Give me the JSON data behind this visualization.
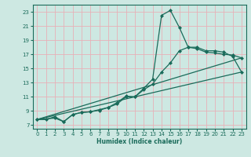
{
  "xlabel": "Humidex (Indice chaleur)",
  "xlim": [
    -0.5,
    23.5
  ],
  "ylim": [
    6.5,
    24.0
  ],
  "xticks": [
    0,
    1,
    2,
    3,
    4,
    5,
    6,
    7,
    8,
    9,
    10,
    11,
    12,
    13,
    14,
    15,
    16,
    17,
    18,
    19,
    20,
    21,
    22,
    23
  ],
  "yticks": [
    7,
    9,
    11,
    13,
    15,
    17,
    19,
    21,
    23
  ],
  "bg_color": "#cde8e2",
  "grid_color": "#e8b0b8",
  "line_color": "#1a6b5a",
  "lines": [
    {
      "x": [
        0,
        2,
        3,
        4,
        5,
        6,
        7,
        8,
        9,
        10,
        11,
        12,
        13,
        14,
        15,
        16,
        17,
        18,
        19,
        20,
        21,
        22,
        23
      ],
      "y": [
        7.8,
        8.0,
        7.5,
        8.5,
        8.8,
        8.9,
        9.1,
        9.5,
        10.0,
        11.0,
        11.0,
        12.2,
        13.5,
        22.5,
        23.2,
        20.8,
        18.0,
        17.8,
        17.3,
        17.2,
        17.0,
        16.9,
        16.5
      ],
      "marker": "D",
      "markersize": 2.0,
      "linewidth": 0.9
    },
    {
      "x": [
        0,
        1,
        2,
        3,
        4,
        5,
        6,
        7,
        8,
        9,
        10,
        11,
        12,
        13,
        14,
        15,
        16,
        17,
        18,
        19,
        20,
        21,
        22,
        23
      ],
      "y": [
        7.8,
        7.8,
        8.2,
        7.5,
        8.5,
        8.8,
        8.9,
        9.2,
        9.5,
        10.2,
        11.1,
        11.0,
        12.0,
        12.8,
        14.5,
        15.8,
        17.5,
        18.0,
        18.0,
        17.5,
        17.5,
        17.3,
        16.7,
        14.5
      ],
      "marker": "D",
      "markersize": 2.0,
      "linewidth": 0.9
    },
    {
      "x": [
        0,
        23
      ],
      "y": [
        7.8,
        14.5
      ],
      "marker": null,
      "linewidth": 0.9
    },
    {
      "x": [
        0,
        23
      ],
      "y": [
        7.8,
        16.5
      ],
      "marker": null,
      "linewidth": 0.9
    }
  ]
}
